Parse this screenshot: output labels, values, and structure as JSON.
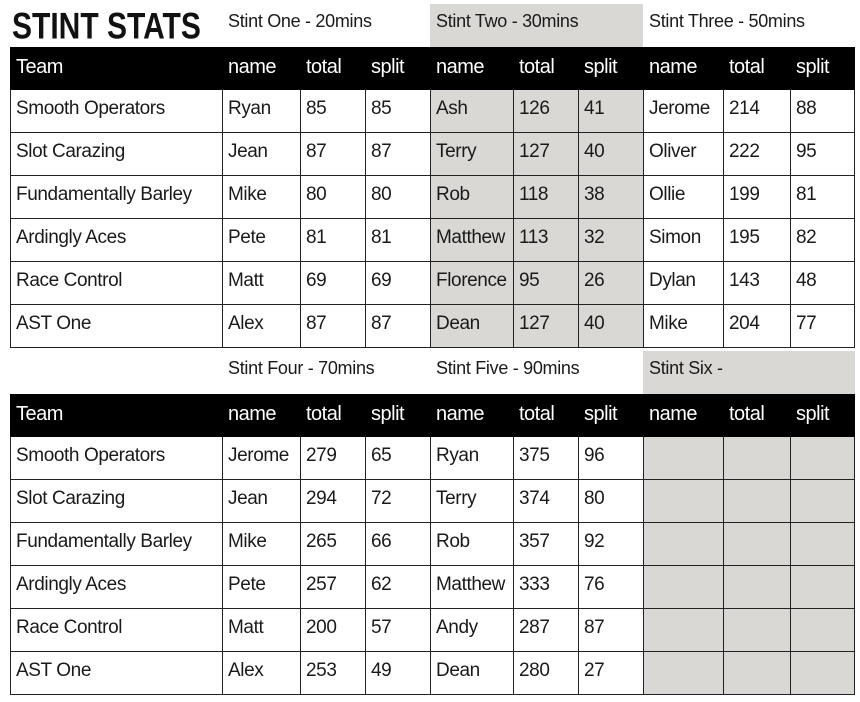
{
  "title": "STINT STATS",
  "columns": [
    "Team",
    "name",
    "total",
    "split",
    "name",
    "total",
    "split",
    "name",
    "total",
    "split"
  ],
  "tables": [
    {
      "stints": [
        {
          "label": "Stint One - 20mins",
          "shaded": false
        },
        {
          "label": "Stint Two - 30mins",
          "shaded": true
        },
        {
          "label": "Stint Three - 50mins",
          "shaded": false
        }
      ],
      "rows": [
        [
          "Smooth Operators",
          "Ryan",
          "85",
          "85",
          "Ash",
          "126",
          "41",
          "Jerome",
          "214",
          "88"
        ],
        [
          "Slot Carazing",
          "Jean",
          "87",
          "87",
          "Terry",
          "127",
          "40",
          "Oliver",
          "222",
          "95"
        ],
        [
          "Fundamentally Barley",
          "Mike",
          "80",
          "80",
          "Rob",
          "118",
          "38",
          "Ollie",
          "199",
          "81"
        ],
        [
          "Ardingly Aces",
          "Pete",
          "81",
          "81",
          "Matthew",
          "113",
          "32",
          "Simon",
          "195",
          "82"
        ],
        [
          "Race Control",
          "Matt",
          "69",
          "69",
          "Florence",
          "95",
          "26",
          "Dylan",
          "143",
          "48"
        ],
        [
          "AST One",
          "Alex",
          "87",
          "87",
          "Dean",
          "127",
          "40",
          "Mike",
          "204",
          "77"
        ]
      ]
    },
    {
      "stints": [
        {
          "label": "Stint Four - 70mins",
          "shaded": false
        },
        {
          "label": "Stint Five - 90mins",
          "shaded": false
        },
        {
          "label": "Stint Six -",
          "shaded": true
        }
      ],
      "rows": [
        [
          "Smooth Operators",
          "Jerome",
          "279",
          "65",
          "Ryan",
          "375",
          "96",
          "",
          "",
          ""
        ],
        [
          "Slot Carazing",
          "Jean",
          "294",
          "72",
          "Terry",
          "374",
          "80",
          "",
          "",
          ""
        ],
        [
          "Fundamentally Barley",
          "Mike",
          "265",
          "66",
          "Rob",
          "357",
          "92",
          "",
          "",
          ""
        ],
        [
          "Ardingly Aces",
          "Pete",
          "257",
          "62",
          "Matthew",
          "333",
          "76",
          "",
          "",
          ""
        ],
        [
          "Race Control",
          "Matt",
          "200",
          "57",
          "Andy",
          "287",
          "87",
          "",
          "",
          ""
        ],
        [
          "AST One",
          "Alex",
          "253",
          "49",
          "Dean",
          "280",
          "27",
          "",
          "",
          ""
        ]
      ]
    }
  ],
  "colors": {
    "header_bg": "#000000",
    "shaded": "#d9d8d5"
  }
}
